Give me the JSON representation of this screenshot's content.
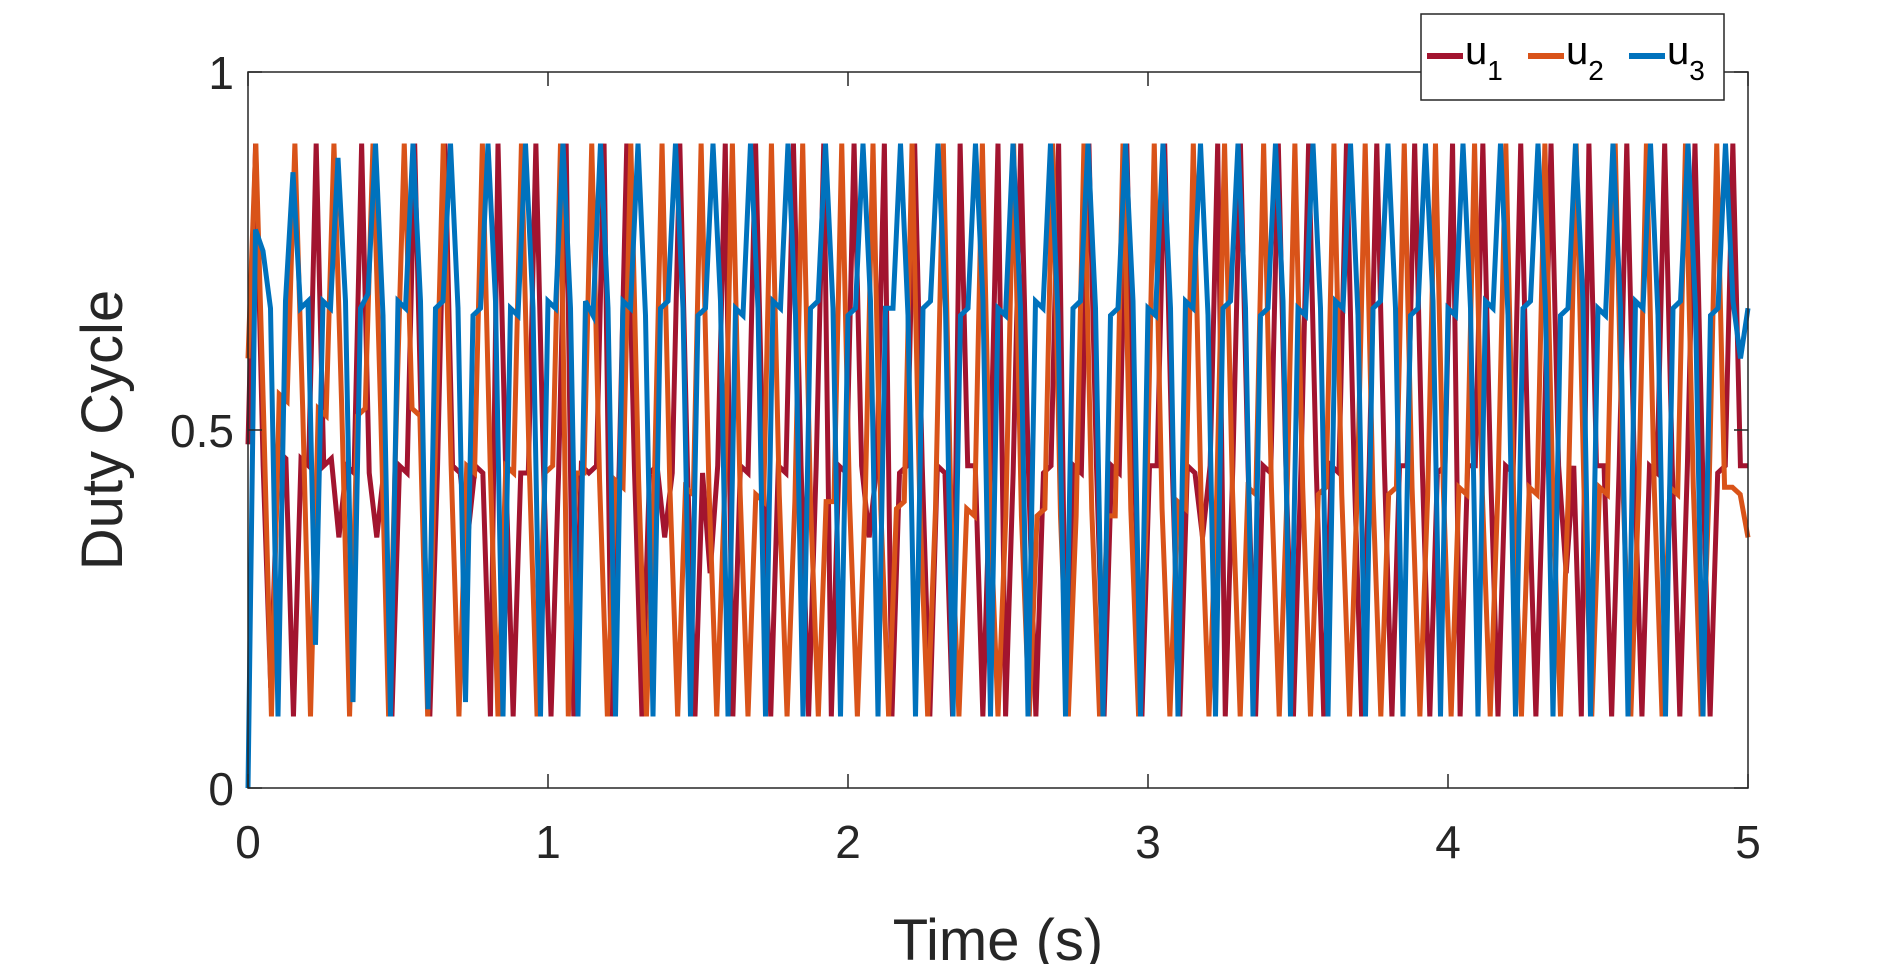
{
  "chart_data": {
    "type": "line",
    "xlabel": "Time (s)",
    "ylabel": "Duty Cycle",
    "xlim": [
      0,
      5
    ],
    "ylim": [
      0,
      1
    ],
    "xticks": [
      "0",
      "1",
      "2",
      "3",
      "4",
      "5"
    ],
    "yticks": [
      "0",
      "0.5",
      "1"
    ],
    "grid": false,
    "legend_placement": "top-right",
    "legend_orientation": "horizontal",
    "series": [
      {
        "name": "u",
        "subscript": "1",
        "color": "#A2142F",
        "values": [
          0.48,
          0.9,
          0.45,
          0.14,
          0.47,
          0.46,
          0.1,
          0.46,
          0.45,
          0.9,
          0.45,
          0.46,
          0.35,
          0.45,
          0.44,
          0.9,
          0.44,
          0.35,
          0.45,
          0.1,
          0.45,
          0.44,
          0.9,
          0.45,
          0.1,
          0.44,
          0.9,
          0.45,
          0.44,
          0.35,
          0.45,
          0.44,
          0.1,
          0.9,
          0.45,
          0.1,
          0.44,
          0.44,
          0.9,
          0.45,
          0.1,
          0.44,
          0.9,
          0.1,
          0.45,
          0.44,
          0.45,
          0.9,
          0.1,
          0.45,
          0.9,
          0.45,
          0.1,
          0.44,
          0.45,
          0.35,
          0.44,
          0.9,
          0.45,
          0.1,
          0.44,
          0.3,
          0.45,
          0.9,
          0.1,
          0.45,
          0.44,
          0.9,
          0.45,
          0.1,
          0.45,
          0.44,
          0.9,
          0.45,
          0.1,
          0.45,
          0.9,
          0.1,
          0.45,
          0.44,
          0.9,
          0.45,
          0.35,
          0.45,
          0.9,
          0.1,
          0.44,
          0.45,
          0.9,
          0.45,
          0.1,
          0.45,
          0.44,
          0.1,
          0.9,
          0.45,
          0.45,
          0.1,
          0.45,
          0.9,
          0.1,
          0.44,
          0.9,
          0.45,
          0.1,
          0.44,
          0.45,
          0.9,
          0.1,
          0.45,
          0.44,
          0.9,
          0.45,
          0.1,
          0.45,
          0.44,
          0.9,
          0.45,
          0.1,
          0.45,
          0.45,
          0.9,
          0.45,
          0.1,
          0.45,
          0.44,
          0.35,
          0.45,
          0.9,
          0.1,
          0.45,
          0.9,
          0.45,
          0.1,
          0.45,
          0.44,
          0.9,
          0.45,
          0.1,
          0.45,
          0.9,
          0.45,
          0.1,
          0.45,
          0.44,
          0.9,
          0.45,
          0.1,
          0.45,
          0.9,
          0.45,
          0.1,
          0.45,
          0.45,
          0.9,
          0.45,
          0.1,
          0.44,
          0.45,
          0.9,
          0.1,
          0.45,
          0.45,
          0.9,
          0.45,
          0.1,
          0.45,
          0.44,
          0.9,
          0.45,
          0.1,
          0.45,
          0.9,
          0.45,
          0.3,
          0.45,
          0.1,
          0.9,
          0.45,
          0.45,
          0.1,
          0.45,
          0.9,
          0.45,
          0.1,
          0.45,
          0.44,
          0.9,
          0.45,
          0.1,
          0.45,
          0.9,
          0.45,
          0.1,
          0.44,
          0.45,
          0.9,
          0.45,
          0.45
        ]
      },
      {
        "name": "u",
        "subscript": "2",
        "color": "#D95319",
        "values": [
          0.6,
          0.9,
          0.52,
          0.1,
          0.55,
          0.54,
          0.9,
          0.53,
          0.1,
          0.53,
          0.52,
          0.9,
          0.53,
          0.1,
          0.52,
          0.53,
          0.9,
          0.52,
          0.1,
          0.52,
          0.9,
          0.53,
          0.52,
          0.1,
          0.48,
          0.9,
          0.45,
          0.1,
          0.45,
          0.44,
          0.9,
          0.45,
          0.1,
          0.45,
          0.44,
          0.9,
          0.45,
          0.1,
          0.44,
          0.45,
          0.9,
          0.1,
          0.44,
          0.44,
          0.9,
          0.43,
          0.1,
          0.43,
          0.42,
          0.9,
          0.43,
          0.1,
          0.42,
          0.9,
          0.42,
          0.1,
          0.42,
          0.41,
          0.9,
          0.42,
          0.1,
          0.41,
          0.9,
          0.41,
          0.1,
          0.41,
          0.4,
          0.9,
          0.41,
          0.1,
          0.4,
          0.9,
          0.4,
          0.1,
          0.4,
          0.4,
          0.9,
          0.4,
          0.1,
          0.4,
          0.9,
          0.39,
          0.1,
          0.39,
          0.4,
          0.9,
          0.39,
          0.1,
          0.39,
          0.9,
          0.38,
          0.1,
          0.39,
          0.38,
          0.9,
          0.39,
          0.1,
          0.38,
          0.9,
          0.38,
          0.1,
          0.38,
          0.39,
          0.9,
          0.38,
          0.1,
          0.38,
          0.9,
          0.39,
          0.1,
          0.38,
          0.38,
          0.9,
          0.39,
          0.1,
          0.38,
          0.9,
          0.39,
          0.1,
          0.4,
          0.39,
          0.9,
          0.4,
          0.1,
          0.41,
          0.9,
          0.42,
          0.1,
          0.42,
          0.41,
          0.9,
          0.42,
          0.1,
          0.41,
          0.9,
          0.42,
          0.1,
          0.41,
          0.42,
          0.9,
          0.41,
          0.1,
          0.42,
          0.9,
          0.41,
          0.1,
          0.41,
          0.42,
          0.9,
          0.42,
          0.1,
          0.41,
          0.9,
          0.42,
          0.1,
          0.42,
          0.41,
          0.9,
          0.41,
          0.1,
          0.42,
          0.9,
          0.41,
          0.1,
          0.42,
          0.41,
          0.9,
          0.42,
          0.1,
          0.41,
          0.9,
          0.42,
          0.1,
          0.42,
          0.41,
          0.9,
          0.42,
          0.1,
          0.41,
          0.9,
          0.42,
          0.1,
          0.42,
          0.41,
          0.9,
          0.42,
          0.1,
          0.41,
          0.9,
          0.42,
          0.42,
          0.41,
          0.35
        ]
      },
      {
        "name": "u",
        "subscript": "3",
        "color": "#0072BD",
        "values": [
          0.0,
          0.78,
          0.75,
          0.67,
          0.1,
          0.68,
          0.86,
          0.67,
          0.68,
          0.2,
          0.68,
          0.67,
          0.88,
          0.68,
          0.12,
          0.67,
          0.69,
          0.9,
          0.66,
          0.1,
          0.68,
          0.67,
          0.9,
          0.68,
          0.11,
          0.67,
          0.68,
          0.9,
          0.67,
          0.12,
          0.66,
          0.67,
          0.9,
          0.68,
          0.1,
          0.67,
          0.66,
          0.9,
          0.67,
          0.1,
          0.68,
          0.67,
          0.9,
          0.67,
          0.1,
          0.68,
          0.66,
          0.9,
          0.67,
          0.1,
          0.68,
          0.67,
          0.9,
          0.66,
          0.1,
          0.67,
          0.68,
          0.9,
          0.67,
          0.1,
          0.66,
          0.67,
          0.9,
          0.68,
          0.1,
          0.67,
          0.66,
          0.9,
          0.67,
          0.1,
          0.68,
          0.67,
          0.9,
          0.66,
          0.1,
          0.67,
          0.68,
          0.9,
          0.67,
          0.1,
          0.66,
          0.67,
          0.9,
          0.68,
          0.1,
          0.67,
          0.67,
          0.9,
          0.66,
          0.1,
          0.67,
          0.68,
          0.9,
          0.67,
          0.1,
          0.66,
          0.67,
          0.9,
          0.68,
          0.1,
          0.67,
          0.66,
          0.9,
          0.67,
          0.1,
          0.68,
          0.67,
          0.9,
          0.66,
          0.1,
          0.67,
          0.68,
          0.9,
          0.67,
          0.1,
          0.66,
          0.67,
          0.9,
          0.68,
          0.1,
          0.67,
          0.66,
          0.9,
          0.67,
          0.1,
          0.68,
          0.67,
          0.9,
          0.66,
          0.1,
          0.67,
          0.68,
          0.9,
          0.67,
          0.1,
          0.66,
          0.67,
          0.9,
          0.68,
          0.1,
          0.67,
          0.66,
          0.9,
          0.67,
          0.1,
          0.68,
          0.67,
          0.9,
          0.66,
          0.1,
          0.67,
          0.68,
          0.9,
          0.67,
          0.1,
          0.66,
          0.67,
          0.9,
          0.68,
          0.1,
          0.67,
          0.66,
          0.9,
          0.67,
          0.1,
          0.68,
          0.67,
          0.9,
          0.66,
          0.1,
          0.67,
          0.68,
          0.9,
          0.67,
          0.1,
          0.66,
          0.67,
          0.9,
          0.68,
          0.1,
          0.67,
          0.66,
          0.9,
          0.67,
          0.1,
          0.68,
          0.67,
          0.9,
          0.66,
          0.1,
          0.67,
          0.68,
          0.9,
          0.67,
          0.1,
          0.66,
          0.67,
          0.9,
          0.68,
          0.6,
          0.67
        ]
      }
    ]
  }
}
